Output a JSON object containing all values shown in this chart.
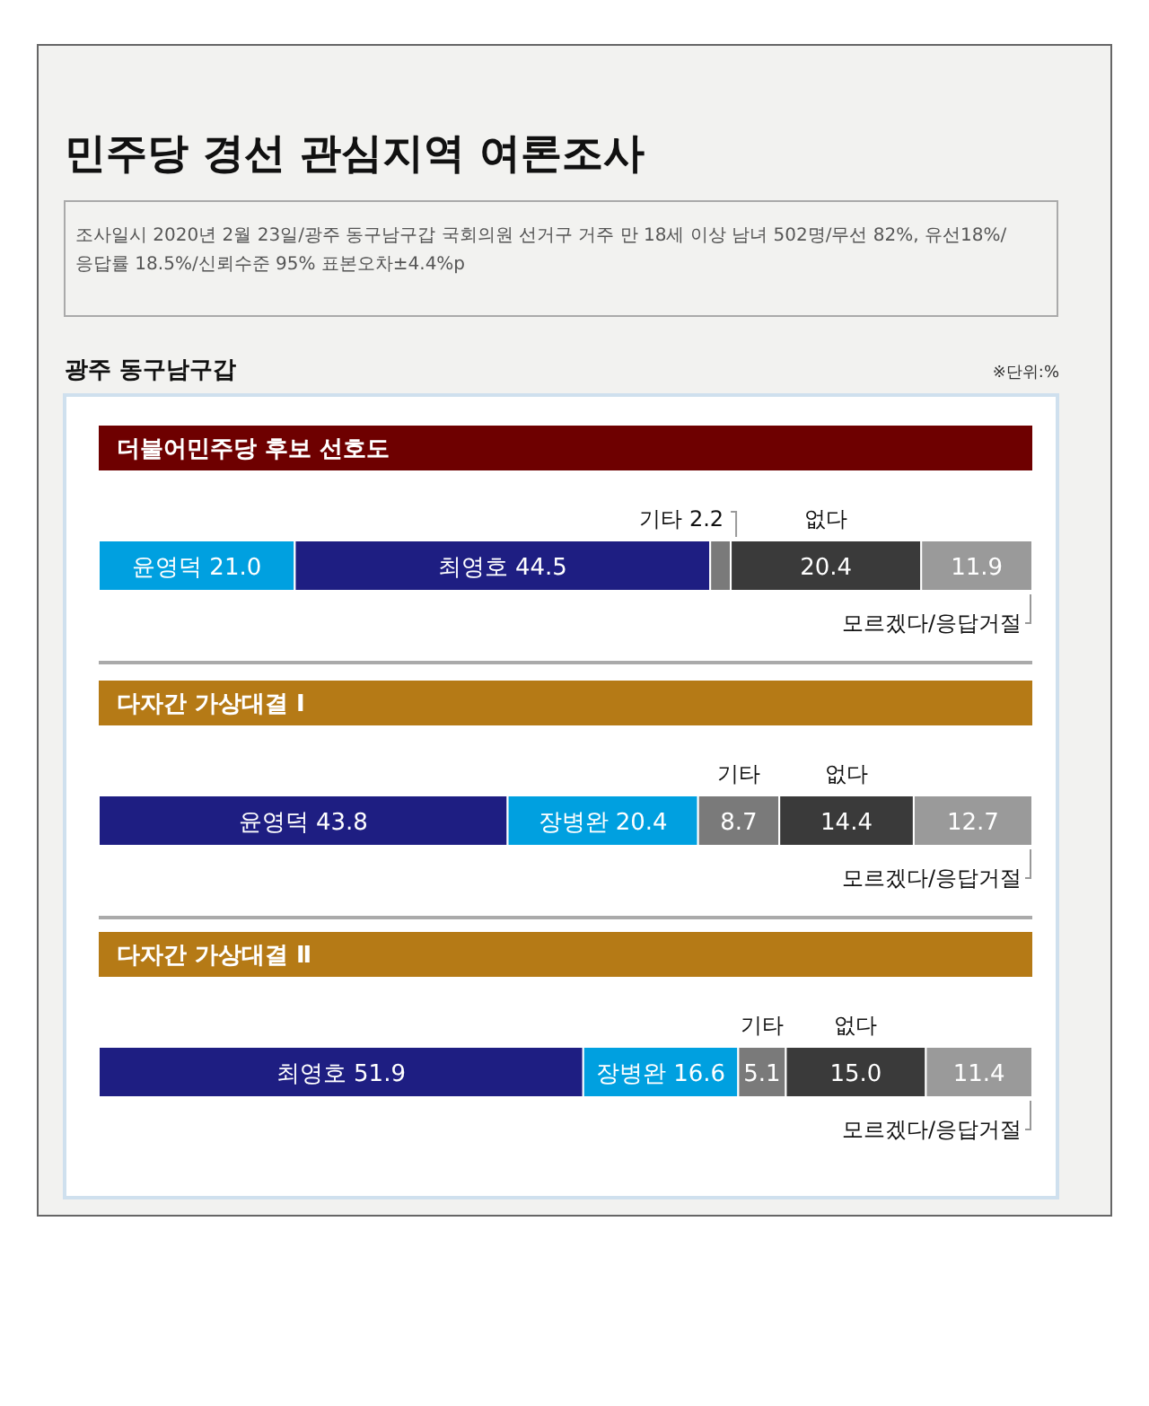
{
  "chart_data": [
    {
      "type": "other",
      "title": "민주당 경선 관심지역 여론조사",
      "annotations": [
        "조사일시 2020년 2월 23일/광주 동구남구갑 국회의원 선거구 거주 만 18세 이상 남녀 502명/무선 82%, 유선18%/응답률 18.5%/신뢰수준 95% 표본오차±4.4%p",
        "광주 동구남구갑",
        "※단위:%"
      ]
    },
    {
      "type": "bar",
      "orientation": "horizontal",
      "stacked": true,
      "title": "더불어민주당 후보 선호도",
      "categories": [
        null
      ],
      "series": [
        {
          "name": "윤영덕",
          "color": "#00a0e0",
          "values": [
            21.0
          ],
          "value_labels": [
            "21.0"
          ]
        },
        {
          "name": "최영호",
          "color": "#1e1e82",
          "values": [
            44.5
          ],
          "value_labels": [
            "44.5"
          ]
        },
        {
          "name": "기타",
          "color": "#7a7a7a",
          "values": [
            2.2
          ],
          "value_labels": [
            "2.2"
          ]
        },
        {
          "name": "없다",
          "color": "#3a3a3a",
          "values": [
            20.4
          ],
          "value_labels": [
            "20.4"
          ]
        },
        {
          "name": "모르겠다/응답거절",
          "color": "#9a9a9a",
          "values": [
            11.9
          ],
          "value_labels": [
            "11.9"
          ]
        }
      ]
    },
    {
      "type": "bar",
      "orientation": "horizontal",
      "stacked": true,
      "title": "다자간 가상대결 Ⅰ",
      "categories": [
        null
      ],
      "series": [
        {
          "name": "윤영덕",
          "color": "#1e1e82",
          "values": [
            43.8
          ],
          "value_labels": [
            "43.8"
          ]
        },
        {
          "name": "장병완",
          "color": "#00a0e0",
          "values": [
            20.4
          ],
          "value_labels": [
            "20.4"
          ]
        },
        {
          "name": "기타",
          "color": "#7a7a7a",
          "values": [
            8.7
          ],
          "value_labels": [
            "8.7"
          ]
        },
        {
          "name": "없다",
          "color": "#3a3a3a",
          "values": [
            14.4
          ],
          "value_labels": [
            "14.4"
          ]
        },
        {
          "name": "모르겠다/응답거절",
          "color": "#9a9a9a",
          "values": [
            12.7
          ],
          "value_labels": [
            "12.7"
          ]
        }
      ]
    },
    {
      "type": "bar",
      "orientation": "horizontal",
      "stacked": true,
      "title": "다자간 가상대결 Ⅱ",
      "categories": [
        null
      ],
      "series": [
        {
          "name": "최영호",
          "color": "#1e1e82",
          "values": [
            51.9
          ],
          "value_labels": [
            "51.9"
          ]
        },
        {
          "name": "장병완",
          "color": "#00a0e0",
          "values": [
            16.6
          ],
          "value_labels": [
            "16.6"
          ]
        },
        {
          "name": "기타",
          "color": "#7a7a7a",
          "values": [
            5.1
          ],
          "value_labels": [
            "5.1"
          ]
        },
        {
          "name": "없다",
          "color": "#3a3a3a",
          "values": [
            15.0
          ],
          "value_labels": [
            "15.0"
          ]
        },
        {
          "name": "모르겠다/응답거절",
          "color": "#9a9a9a",
          "values": [
            11.4
          ],
          "value_labels": [
            "11.4"
          ]
        }
      ]
    }
  ]
}
